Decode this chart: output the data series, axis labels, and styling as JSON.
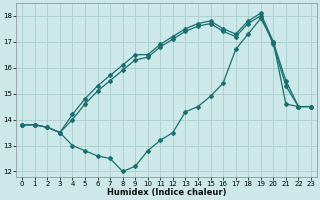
{
  "xlabel": "Humidex (Indice chaleur)",
  "bg_color": "#cce8e8",
  "grid_color": "#aacccc",
  "line_color": "#1a7070",
  "xlim": [
    -0.5,
    23.5
  ],
  "ylim": [
    11.8,
    18.5
  ],
  "xticks": [
    0,
    1,
    2,
    3,
    4,
    5,
    6,
    7,
    8,
    9,
    10,
    11,
    12,
    13,
    14,
    15,
    16,
    17,
    18,
    19,
    20,
    21,
    22,
    23
  ],
  "yticks": [
    12,
    13,
    14,
    15,
    16,
    17,
    18
  ],
  "s1_x": [
    0,
    1,
    2,
    3,
    4,
    5,
    6,
    7,
    8,
    9,
    10,
    11,
    12,
    13,
    14,
    15,
    16,
    17,
    18,
    19,
    20,
    21,
    22,
    23
  ],
  "s1_y": [
    13.8,
    13.8,
    13.7,
    13.5,
    13.0,
    12.8,
    12.6,
    12.5,
    12.0,
    12.2,
    12.8,
    13.2,
    13.5,
    14.3,
    14.5,
    14.9,
    15.4,
    16.7,
    17.3,
    17.9,
    17.0,
    14.6,
    14.5,
    14.5
  ],
  "s2_x": [
    0,
    1,
    2,
    3,
    4,
    5,
    6,
    7,
    8,
    9,
    10,
    11,
    12,
    13,
    14,
    15,
    16,
    17,
    18,
    19,
    20,
    21,
    22,
    23
  ],
  "s2_y": [
    13.8,
    13.8,
    13.7,
    13.5,
    14.2,
    14.8,
    15.3,
    15.7,
    16.1,
    16.5,
    16.5,
    16.9,
    17.2,
    17.5,
    17.7,
    17.8,
    17.5,
    17.3,
    17.8,
    18.1,
    17.0,
    15.5,
    14.5,
    14.5
  ],
  "s3_x": [
    0,
    1,
    2,
    3,
    4,
    5,
    6,
    7,
    8,
    9,
    10,
    11,
    12,
    13,
    14,
    15,
    16,
    17,
    18,
    19,
    20,
    21,
    22,
    23
  ],
  "s3_y": [
    13.8,
    13.8,
    13.7,
    13.5,
    14.0,
    14.6,
    15.1,
    15.5,
    15.9,
    16.3,
    16.4,
    16.8,
    17.1,
    17.4,
    17.6,
    17.7,
    17.4,
    17.2,
    17.7,
    18.0,
    16.9,
    15.3,
    14.5,
    14.5
  ],
  "markersize": 2.0,
  "linewidth": 0.9,
  "xlabel_fontsize": 6.0,
  "tick_fontsize": 5.0
}
